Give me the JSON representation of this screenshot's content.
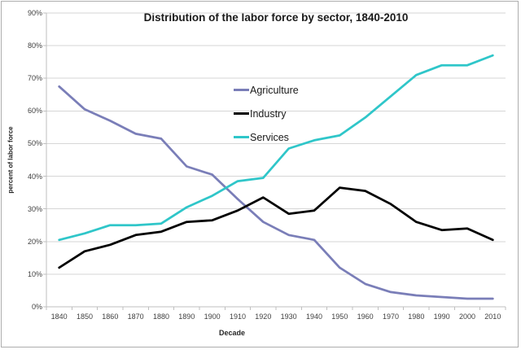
{
  "chart_data": {
    "type": "line",
    "title": "Distribution of the labor force by sector, 1840-2010",
    "xlabel": "Decade",
    "ylabel": "percent of labor force",
    "categories": [
      "1840",
      "1850",
      "1860",
      "1870",
      "1880",
      "1890",
      "1900",
      "1910",
      "1920",
      "1930",
      "1940",
      "1950",
      "1960",
      "1970",
      "1980",
      "1990",
      "2000",
      "2010"
    ],
    "series": [
      {
        "name": "Agriculture",
        "color": "#7a7eb8",
        "values": [
          67.5,
          60.5,
          57,
          53,
          51.5,
          43,
          40.5,
          33,
          26,
          22,
          20.5,
          12,
          7,
          4.5,
          3.5,
          3,
          2.5,
          2.5
        ]
      },
      {
        "name": "Industry",
        "color": "#000000",
        "values": [
          12,
          17,
          19,
          22,
          23,
          26,
          26.5,
          29.5,
          33.5,
          28.5,
          29.5,
          36.5,
          35.5,
          31.5,
          26,
          23.5,
          24,
          20.5
        ]
      },
      {
        "name": "Services",
        "color": "#2fc6c9",
        "values": [
          20.5,
          22.5,
          25,
          25,
          25.5,
          30.5,
          34,
          38.5,
          39.5,
          48.5,
          51,
          52.5,
          58,
          64.5,
          71,
          74,
          74,
          77
        ]
      }
    ],
    "ylim": [
      0,
      90
    ],
    "ytick_step": 10,
    "ytick_format": "percent",
    "grid": "horizontal",
    "legend_position": "inside-top-center",
    "styles": {
      "gridline_color": "#d6d6d6",
      "axis_color": "#bfbfbf",
      "tick_label_color": "#3f3f3f",
      "line_width": 2.75
    }
  }
}
